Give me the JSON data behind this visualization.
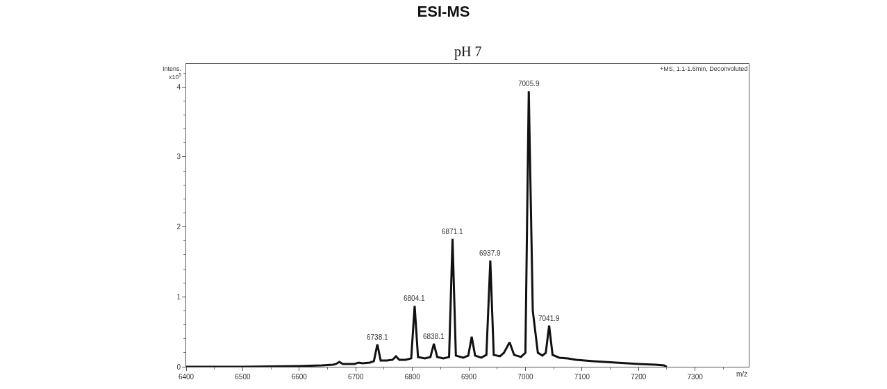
{
  "chart_data": {
    "type": "line",
    "title": "ESI-MS",
    "subtitle": "pH 7",
    "xlabel": "m/z",
    "ylabel": "Intens.\nx10$^{5}$",
    "x": [
      6400,
      6500,
      6600,
      6640,
      6660,
      6665,
      6671,
      6677,
      6690,
      6698,
      6705,
      6712,
      6725,
      6732,
      6738.1,
      6744,
      6755,
      6765,
      6771,
      6777,
      6788,
      6798,
      6804.1,
      6810,
      6822,
      6832,
      6838.1,
      6844,
      6855,
      6865,
      6871.1,
      6877,
      6890,
      6899,
      6905,
      6911,
      6922,
      6931,
      6937.9,
      6944,
      6955,
      6962,
      6972,
      6980,
      6992,
      7000,
      7005.9,
      7013,
      7022,
      7030,
      7036,
      7041.9,
      7048,
      7060,
      7075,
      7090,
      7120,
      7160,
      7200,
      7230,
      7245,
      7250
    ],
    "series": [
      {
        "color": "#111111",
        "values": [
          0,
          0,
          0.01,
          0.02,
          0.03,
          0.04,
          0.07,
          0.04,
          0.04,
          0.04,
          0.06,
          0.05,
          0.06,
          0.08,
          0.32,
          0.09,
          0.09,
          0.1,
          0.15,
          0.1,
          0.1,
          0.12,
          0.87,
          0.14,
          0.12,
          0.14,
          0.33,
          0.14,
          0.12,
          0.14,
          1.83,
          0.16,
          0.13,
          0.16,
          0.43,
          0.16,
          0.13,
          0.17,
          1.52,
          0.17,
          0.15,
          0.2,
          0.35,
          0.17,
          0.14,
          0.2,
          3.94,
          0.8,
          0.2,
          0.16,
          0.2,
          0.59,
          0.17,
          0.13,
          0.12,
          0.1,
          0.08,
          0.06,
          0.04,
          0.03,
          0.02,
          0
        ]
      }
    ],
    "xlim": [
      6400,
      7395
    ],
    "ylim": [
      0,
      4.33
    ],
    "xticks": [
      6400,
      6500,
      6600,
      6700,
      6800,
      6900,
      7000,
      7100,
      7200,
      7300
    ],
    "yticks": [
      0,
      1,
      2,
      3,
      4
    ],
    "legend": false,
    "marker": "none",
    "line_style": "solid",
    "annotations": [
      {
        "text": "6738.1",
        "x": 6738.1,
        "y": 0.32
      },
      {
        "text": "6804.1",
        "x": 6804.1,
        "y": 0.87
      },
      {
        "text": "6838.1",
        "x": 6838.1,
        "y": 0.33
      },
      {
        "text": "6871.1",
        "x": 6871.1,
        "y": 1.83
      },
      {
        "text": "6937.9",
        "x": 6937.9,
        "y": 1.52
      },
      {
        "text": "7005.9",
        "x": 7005.9,
        "y": 3.94
      },
      {
        "text": "7041.9",
        "x": 7041.9,
        "y": 0.59
      },
      "+MS, 1.1-1.6min, Deconvoluted"
    ]
  }
}
